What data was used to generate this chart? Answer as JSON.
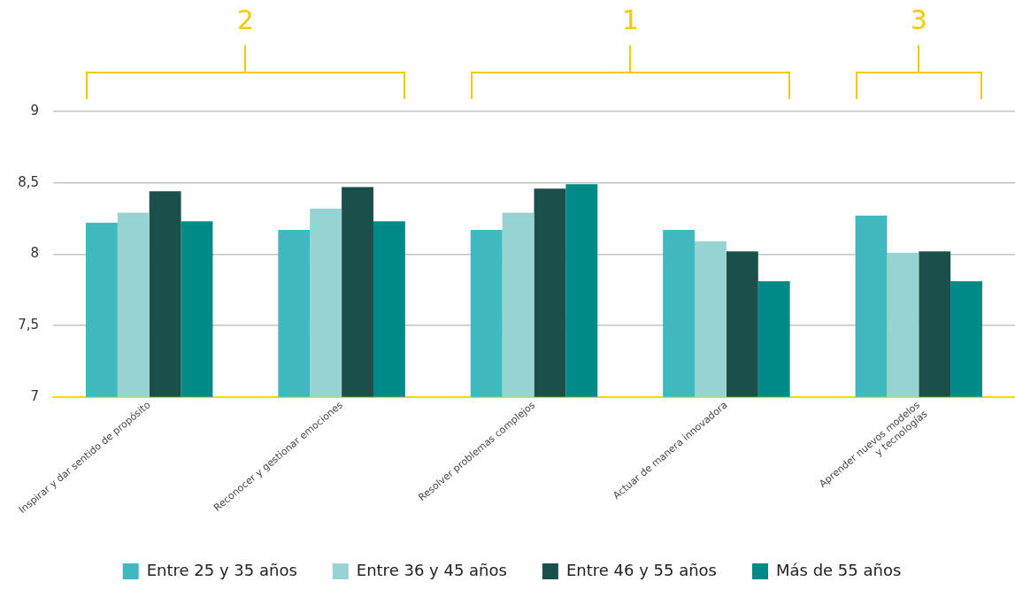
{
  "chart_data": {
    "type": "bar",
    "categories": [
      "Inspirar y dar sentido de propósito",
      "Reconocer y gestionar emociones",
      "Resolver problemas complejos",
      "Actuar de manera innovadora",
      "Aprender nuevos modelos\ny tecnologías"
    ],
    "series": [
      {
        "name": "Entre 25 y 35 años",
        "color": "#3fb8c0",
        "values": [
          8.22,
          8.17,
          8.17,
          8.17,
          8.27
        ]
      },
      {
        "name": "Entre 36 y 45 años",
        "color": "#98d3d4",
        "values": [
          8.29,
          8.32,
          8.29,
          8.09,
          8.01
        ]
      },
      {
        "name": "Entre 46 y 55 años",
        "color": "#1b4f4b",
        "values": [
          8.44,
          8.47,
          8.46,
          8.02,
          8.02
        ]
      },
      {
        "name": "Más de 55 años",
        "color": "#008a87",
        "values": [
          8.23,
          8.23,
          8.49,
          7.81,
          7.81
        ]
      }
    ],
    "ylim": [
      7,
      9
    ],
    "yticks": [
      {
        "value": 7,
        "label": "7"
      },
      {
        "value": 7.5,
        "label": "7,5"
      },
      {
        "value": 8,
        "label": "8"
      },
      {
        "value": 8.5,
        "label": "8,5"
      },
      {
        "value": 9,
        "label": "9"
      }
    ],
    "grid": "y",
    "legend": "bottom",
    "annotations": [
      "2",
      "1",
      "3"
    ]
  }
}
